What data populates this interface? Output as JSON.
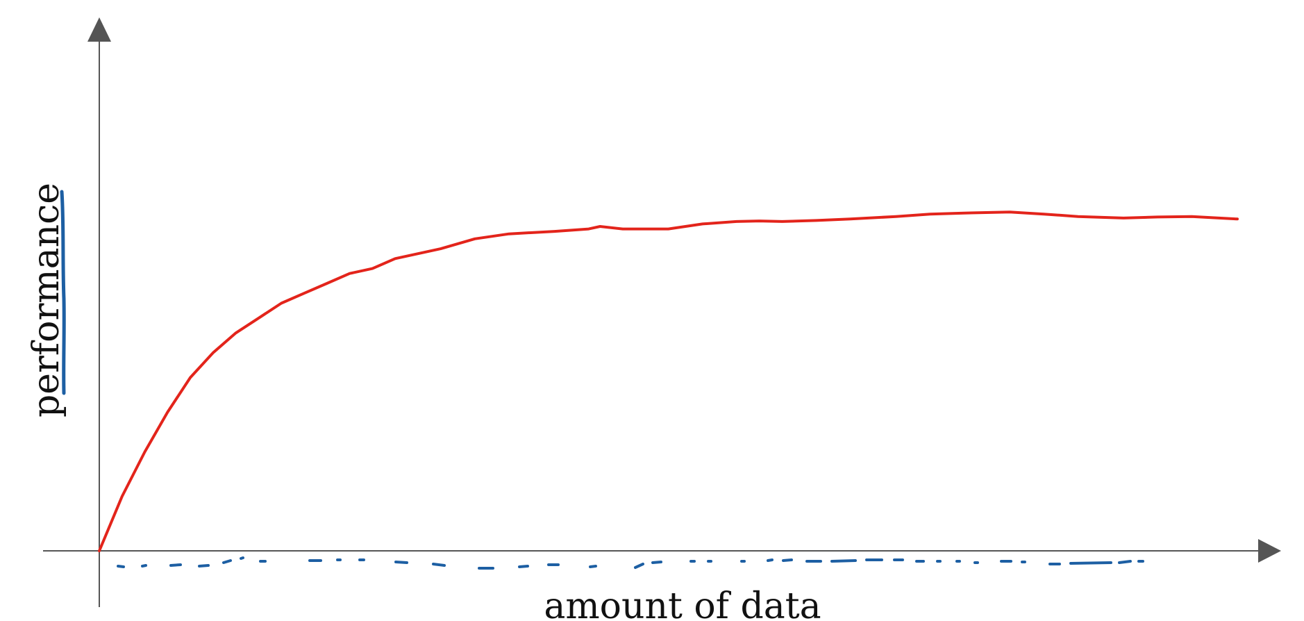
{
  "chart_data": {
    "type": "line",
    "title": "",
    "xlabel": "amount of data",
    "ylabel": "performance",
    "xlim": [
      0,
      100
    ],
    "ylim": [
      0,
      100
    ],
    "grid": false,
    "legend": "none",
    "series": [
      {
        "color": "#e3241b",
        "x": [
          0,
          2,
          4,
          6,
          8,
          10,
          12,
          14,
          16,
          18,
          20,
          22,
          24,
          26,
          28,
          30,
          33,
          36,
          40,
          43,
          44,
          46,
          50,
          53,
          56,
          58,
          60,
          63,
          66,
          70,
          73,
          76,
          80,
          83,
          86,
          90,
          93,
          96,
          100
        ],
        "y": [
          0,
          11,
          20,
          28,
          35,
          40,
          44,
          47,
          50,
          52,
          54,
          56,
          57,
          59,
          60,
          61,
          63,
          64,
          64.5,
          65,
          65.5,
          65,
          65,
          66,
          66.5,
          66.6,
          66.5,
          66.7,
          67,
          67.5,
          68,
          68.2,
          68.4,
          68,
          67.5,
          67.2,
          67.4,
          67.5,
          67
        ]
      }
    ],
    "annotations": [
      {
        "type": "pen-underline",
        "color": "#1d5fa3",
        "target": "ylabel"
      },
      {
        "type": "pen-dashes",
        "color": "#1d5fa3",
        "target": "x-axis"
      }
    ]
  }
}
